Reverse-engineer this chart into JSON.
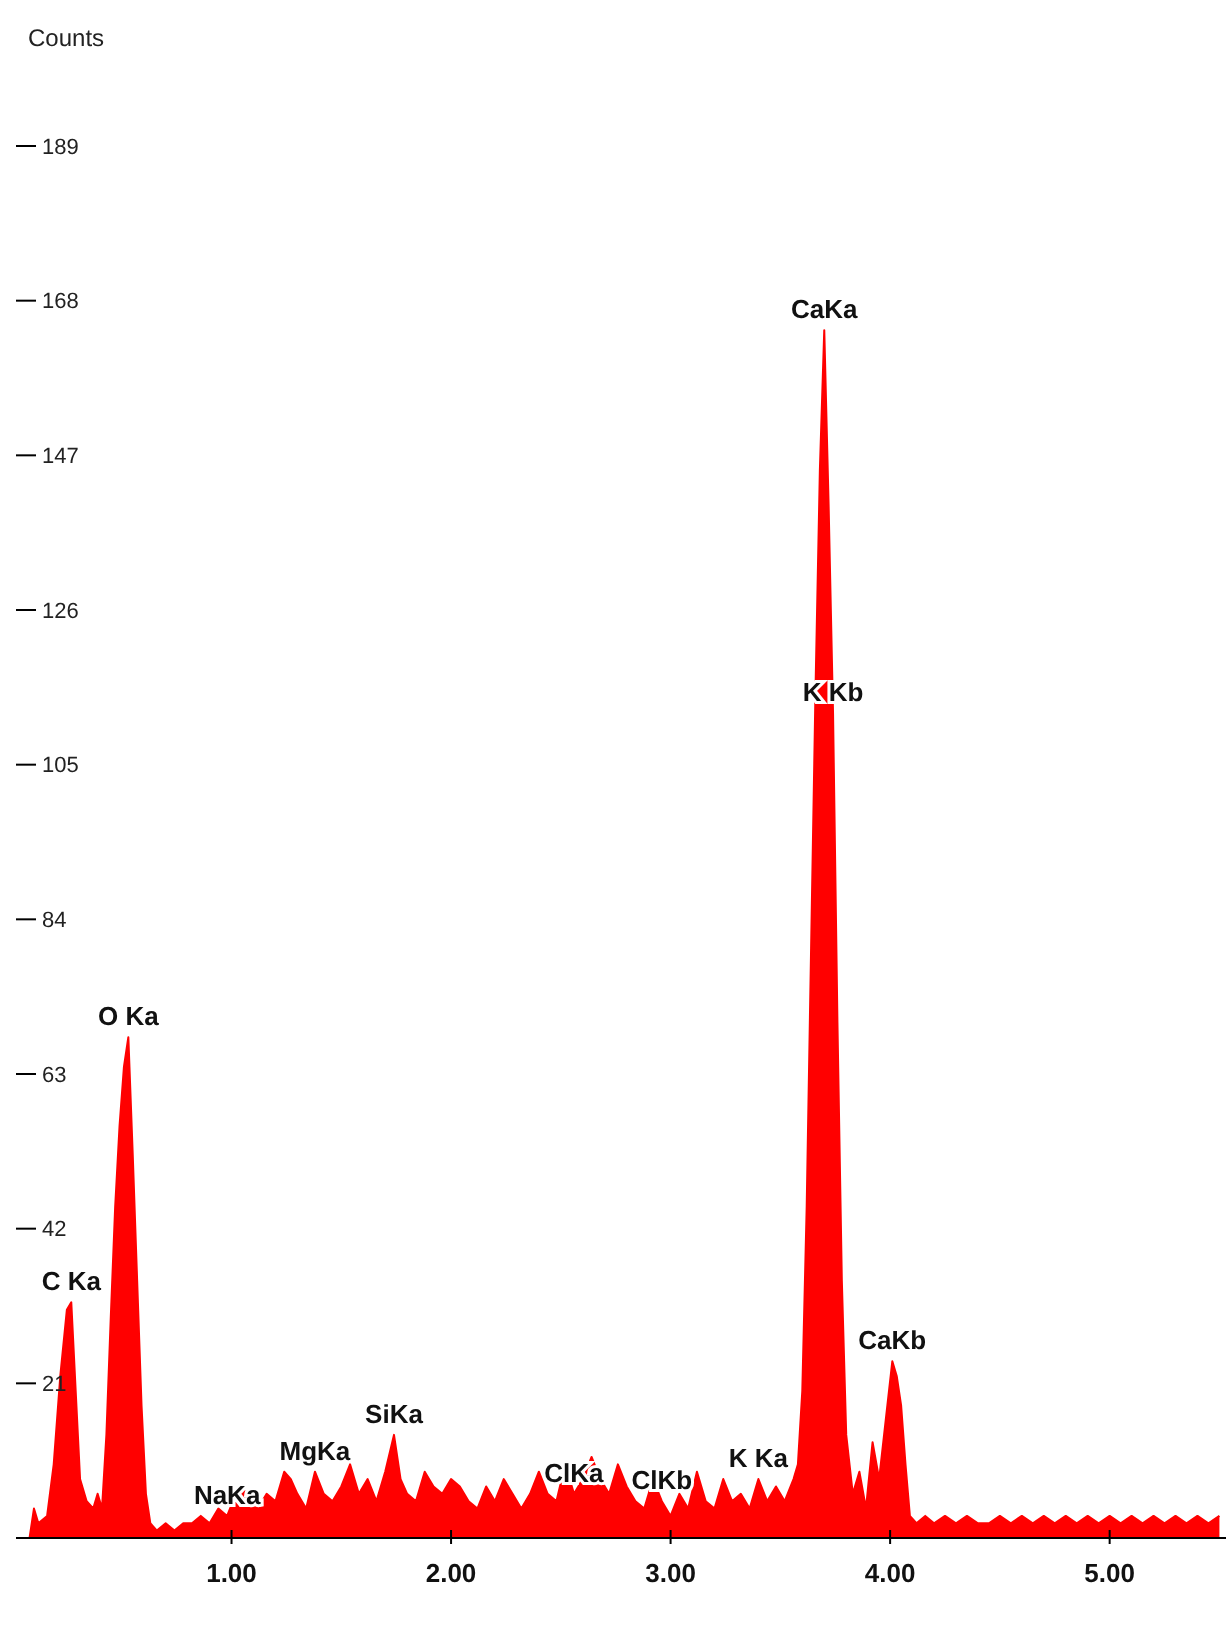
{
  "chart_data": {
    "type": "area",
    "ylabel": "Counts",
    "x": [
      0.08,
      0.1,
      0.12,
      0.16,
      0.19,
      0.22,
      0.25,
      0.27,
      0.29,
      0.31,
      0.34,
      0.37,
      0.39,
      0.41,
      0.43,
      0.45,
      0.47,
      0.49,
      0.51,
      0.53,
      0.55,
      0.57,
      0.59,
      0.61,
      0.63,
      0.66,
      0.7,
      0.74,
      0.78,
      0.82,
      0.86,
      0.9,
      0.94,
      0.98,
      1.02,
      1.05,
      1.08,
      1.12,
      1.16,
      1.2,
      1.24,
      1.27,
      1.3,
      1.34,
      1.38,
      1.42,
      1.46,
      1.5,
      1.54,
      1.58,
      1.62,
      1.66,
      1.7,
      1.74,
      1.77,
      1.8,
      1.84,
      1.88,
      1.92,
      1.96,
      2.0,
      2.04,
      2.08,
      2.12,
      2.16,
      2.2,
      2.24,
      2.28,
      2.32,
      2.36,
      2.4,
      2.44,
      2.48,
      2.52,
      2.56,
      2.6,
      2.64,
      2.68,
      2.72,
      2.76,
      2.8,
      2.84,
      2.88,
      2.92,
      2.96,
      3.0,
      3.04,
      3.08,
      3.12,
      3.16,
      3.2,
      3.24,
      3.28,
      3.32,
      3.36,
      3.4,
      3.44,
      3.48,
      3.52,
      3.56,
      3.58,
      3.6,
      3.62,
      3.64,
      3.66,
      3.68,
      3.7,
      3.72,
      3.74,
      3.76,
      3.78,
      3.8,
      3.83,
      3.86,
      3.89,
      3.92,
      3.95,
      3.98,
      4.01,
      4.03,
      4.05,
      4.07,
      4.09,
      4.12,
      4.16,
      4.2,
      4.25,
      4.3,
      4.35,
      4.4,
      4.45,
      4.5,
      4.55,
      4.6,
      4.65,
      4.7,
      4.75,
      4.8,
      4.85,
      4.9,
      4.95,
      5.0,
      5.05,
      5.1,
      5.15,
      5.2,
      5.25,
      5.3,
      5.35,
      5.4,
      5.45,
      5.5
    ],
    "series": [
      {
        "color": "#ff0000",
        "values": [
          0,
          4,
          2,
          3,
          10,
          22,
          31,
          32,
          20,
          8,
          5,
          4,
          6,
          4,
          14,
          30,
          45,
          56,
          64,
          68,
          52,
          35,
          18,
          6,
          2,
          1,
          2,
          1,
          2,
          2,
          3,
          2,
          4,
          3,
          6,
          7,
          5,
          4,
          6,
          5,
          9,
          8,
          6,
          4,
          9,
          6,
          5,
          7,
          10,
          6,
          8,
          5,
          9,
          14,
          8,
          6,
          5,
          9,
          7,
          6,
          8,
          7,
          5,
          4,
          7,
          5,
          8,
          6,
          4,
          6,
          9,
          6,
          5,
          10,
          6,
          8,
          11,
          8,
          6,
          10,
          7,
          5,
          4,
          8,
          5,
          3,
          6,
          4,
          9,
          5,
          4,
          8,
          5,
          6,
          4,
          8,
          5,
          7,
          5,
          8,
          10,
          20,
          45,
          80,
          115,
          145,
          164,
          140,
          112,
          70,
          35,
          14,
          6,
          9,
          4,
          13,
          8,
          16,
          24,
          22,
          18,
          10,
          3,
          2,
          3,
          2,
          3,
          2,
          3,
          2,
          2,
          3,
          2,
          3,
          2,
          3,
          2,
          3,
          2,
          3,
          2,
          3,
          2,
          3,
          2,
          3,
          2,
          3,
          2,
          3,
          2,
          3
        ]
      }
    ],
    "xlim": [
      0,
      5.53
    ],
    "xticks": [
      {
        "value": 1,
        "label": "1.00"
      },
      {
        "value": 2,
        "label": "2.00"
      },
      {
        "value": 3,
        "label": "3.00"
      },
      {
        "value": 4,
        "label": "4.00"
      },
      {
        "value": 5,
        "label": "5.00"
      }
    ],
    "ylim": [
      0,
      189
    ],
    "yticks": [
      21,
      42,
      63,
      84,
      105,
      126,
      147,
      168,
      189
    ],
    "annotations": [
      {
        "text": "C Ka",
        "x": 0.27,
        "y": 32
      },
      {
        "text": "O Ka",
        "x": 0.53,
        "y": 68
      },
      {
        "text": "NaKa",
        "x": 0.98,
        "y": 3
      },
      {
        "text": "MgKa",
        "x": 1.38,
        "y": 9
      },
      {
        "text": "SiKa",
        "x": 1.74,
        "y": 14
      },
      {
        "text": "ClKa",
        "x": 2.56,
        "y": 6
      },
      {
        "text": "ClKb",
        "x": 2.96,
        "y": 5
      },
      {
        "text": "K Ka",
        "x": 3.4,
        "y": 8
      },
      {
        "text": "K Kb",
        "x": 3.74,
        "y": 112
      },
      {
        "text": "CaKa",
        "x": 3.7,
        "y": 164
      },
      {
        "text": "CaKb",
        "x": 4.01,
        "y": 24
      }
    ]
  }
}
